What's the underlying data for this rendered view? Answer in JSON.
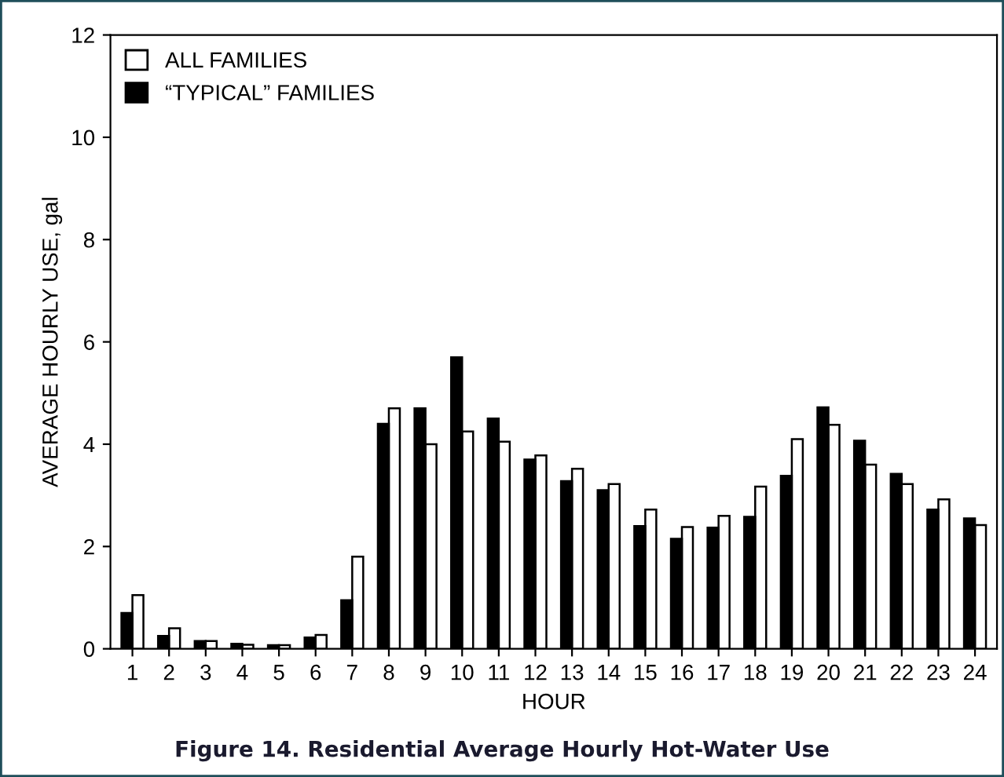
{
  "chart_data": {
    "type": "bar",
    "xlabel": "HOUR",
    "ylabel": "AVERAGE HOURLY USE, gal",
    "categories": [
      "1",
      "2",
      "3",
      "4",
      "5",
      "6",
      "7",
      "8",
      "9",
      "10",
      "11",
      "12",
      "13",
      "14",
      "15",
      "16",
      "17",
      "18",
      "19",
      "20",
      "21",
      "22",
      "23",
      "24"
    ],
    "series": [
      {
        "name": "ALL FAMILIES",
        "color": "#ffffff",
        "values": [
          1.05,
          0.4,
          0.15,
          0.08,
          0.07,
          0.27,
          1.8,
          4.7,
          4.0,
          4.25,
          4.05,
          3.78,
          3.52,
          3.22,
          2.72,
          2.38,
          2.6,
          3.17,
          4.1,
          4.38,
          3.6,
          3.22,
          2.92,
          2.42
        ]
      },
      {
        "name": "“TYPICAL” FAMILIES",
        "color": "#000000",
        "values": [
          0.7,
          0.25,
          0.15,
          0.1,
          0.07,
          0.22,
          0.95,
          4.4,
          4.7,
          5.7,
          4.5,
          3.7,
          3.28,
          3.1,
          2.4,
          2.15,
          2.37,
          2.58,
          3.38,
          4.72,
          4.07,
          3.42,
          2.72,
          2.55
        ]
      }
    ],
    "ylim": [
      0,
      12
    ],
    "yticks": [
      0,
      2,
      4,
      6,
      8,
      10,
      12
    ],
    "grid": false,
    "legend": "top left",
    "annotations": [
      "Figure 14. Residential Average Hourly Hot-Water Use"
    ]
  }
}
